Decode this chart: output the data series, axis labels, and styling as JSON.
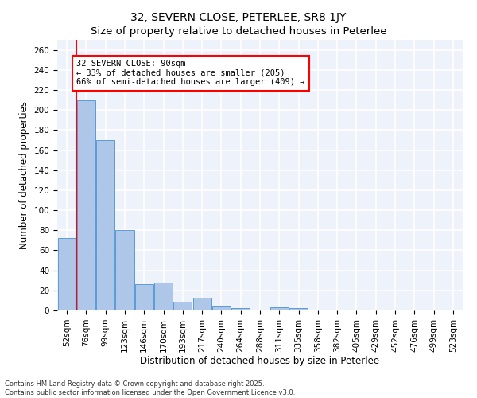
{
  "title": "32, SEVERN CLOSE, PETERLEE, SR8 1JY",
  "subtitle": "Size of property relative to detached houses in Peterlee",
  "xlabel": "Distribution of detached houses by size in Peterlee",
  "ylabel": "Number of detached properties",
  "categories": [
    "52sqm",
    "76sqm",
    "99sqm",
    "123sqm",
    "146sqm",
    "170sqm",
    "193sqm",
    "217sqm",
    "240sqm",
    "264sqm",
    "288sqm",
    "311sqm",
    "335sqm",
    "358sqm",
    "382sqm",
    "405sqm",
    "429sqm",
    "452sqm",
    "476sqm",
    "499sqm",
    "523sqm"
  ],
  "values": [
    72,
    210,
    170,
    80,
    26,
    28,
    9,
    13,
    4,
    2,
    0,
    3,
    2,
    0,
    0,
    0,
    0,
    0,
    0,
    0,
    1
  ],
  "bar_color": "#aec6e8",
  "bar_edge_color": "#5b9bd5",
  "red_line_x": 0.5,
  "annotation_text": "32 SEVERN CLOSE: 90sqm\n← 33% of detached houses are smaller (205)\n66% of semi-detached houses are larger (409) →",
  "annotation_box_color": "white",
  "annotation_box_edge_color": "red",
  "ylim": [
    0,
    270
  ],
  "yticks": [
    0,
    20,
    40,
    60,
    80,
    100,
    120,
    140,
    160,
    180,
    200,
    220,
    240,
    260
  ],
  "background_color": "#eef2fa",
  "grid_color": "white",
  "footer": "Contains HM Land Registry data © Crown copyright and database right 2025.\nContains public sector information licensed under the Open Government Licence v3.0.",
  "title_fontsize": 10,
  "xlabel_fontsize": 8.5,
  "ylabel_fontsize": 8.5,
  "tick_fontsize": 7.5,
  "annot_fontsize": 7.5
}
